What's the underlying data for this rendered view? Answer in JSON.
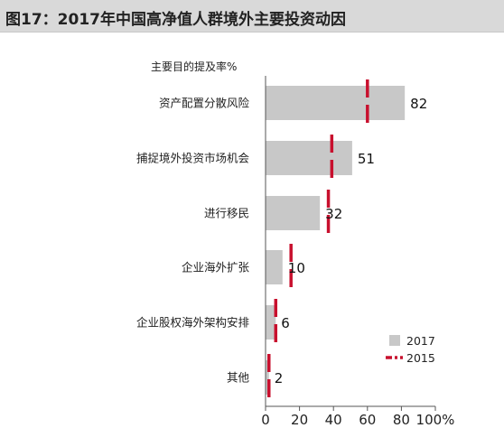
{
  "title": "图17：2017年中国高净值人群境外主要投资动因",
  "chart_data": {
    "type": "bar",
    "orientation": "horizontal",
    "subtitle": "主要目的提及率%",
    "categories": [
      "资产配置分散风险",
      "捕捉境外投资市场机会",
      "进行移民",
      "企业海外扩张",
      "企业股权海外架构安排",
      "其他"
    ],
    "series": [
      {
        "name": "2017",
        "type": "bar",
        "color": "#c8c8c8",
        "values": [
          82,
          51,
          32,
          10,
          6,
          2
        ]
      },
      {
        "name": "2015",
        "type": "marker",
        "color": "#c8102e",
        "values": [
          60,
          39,
          37,
          15,
          6,
          2
        ]
      }
    ],
    "data_labels": [
      "82",
      "51",
      "32",
      "10",
      "6",
      "2"
    ],
    "xlim": [
      0,
      100
    ],
    "xticks": [
      0,
      20,
      40,
      60,
      80,
      100
    ],
    "xtick_labels": [
      "0",
      "20",
      "40",
      "60",
      "80",
      "100%"
    ],
    "legend": {
      "position": "bottom-right",
      "items": [
        "2017",
        "2015"
      ]
    },
    "grid": false
  }
}
